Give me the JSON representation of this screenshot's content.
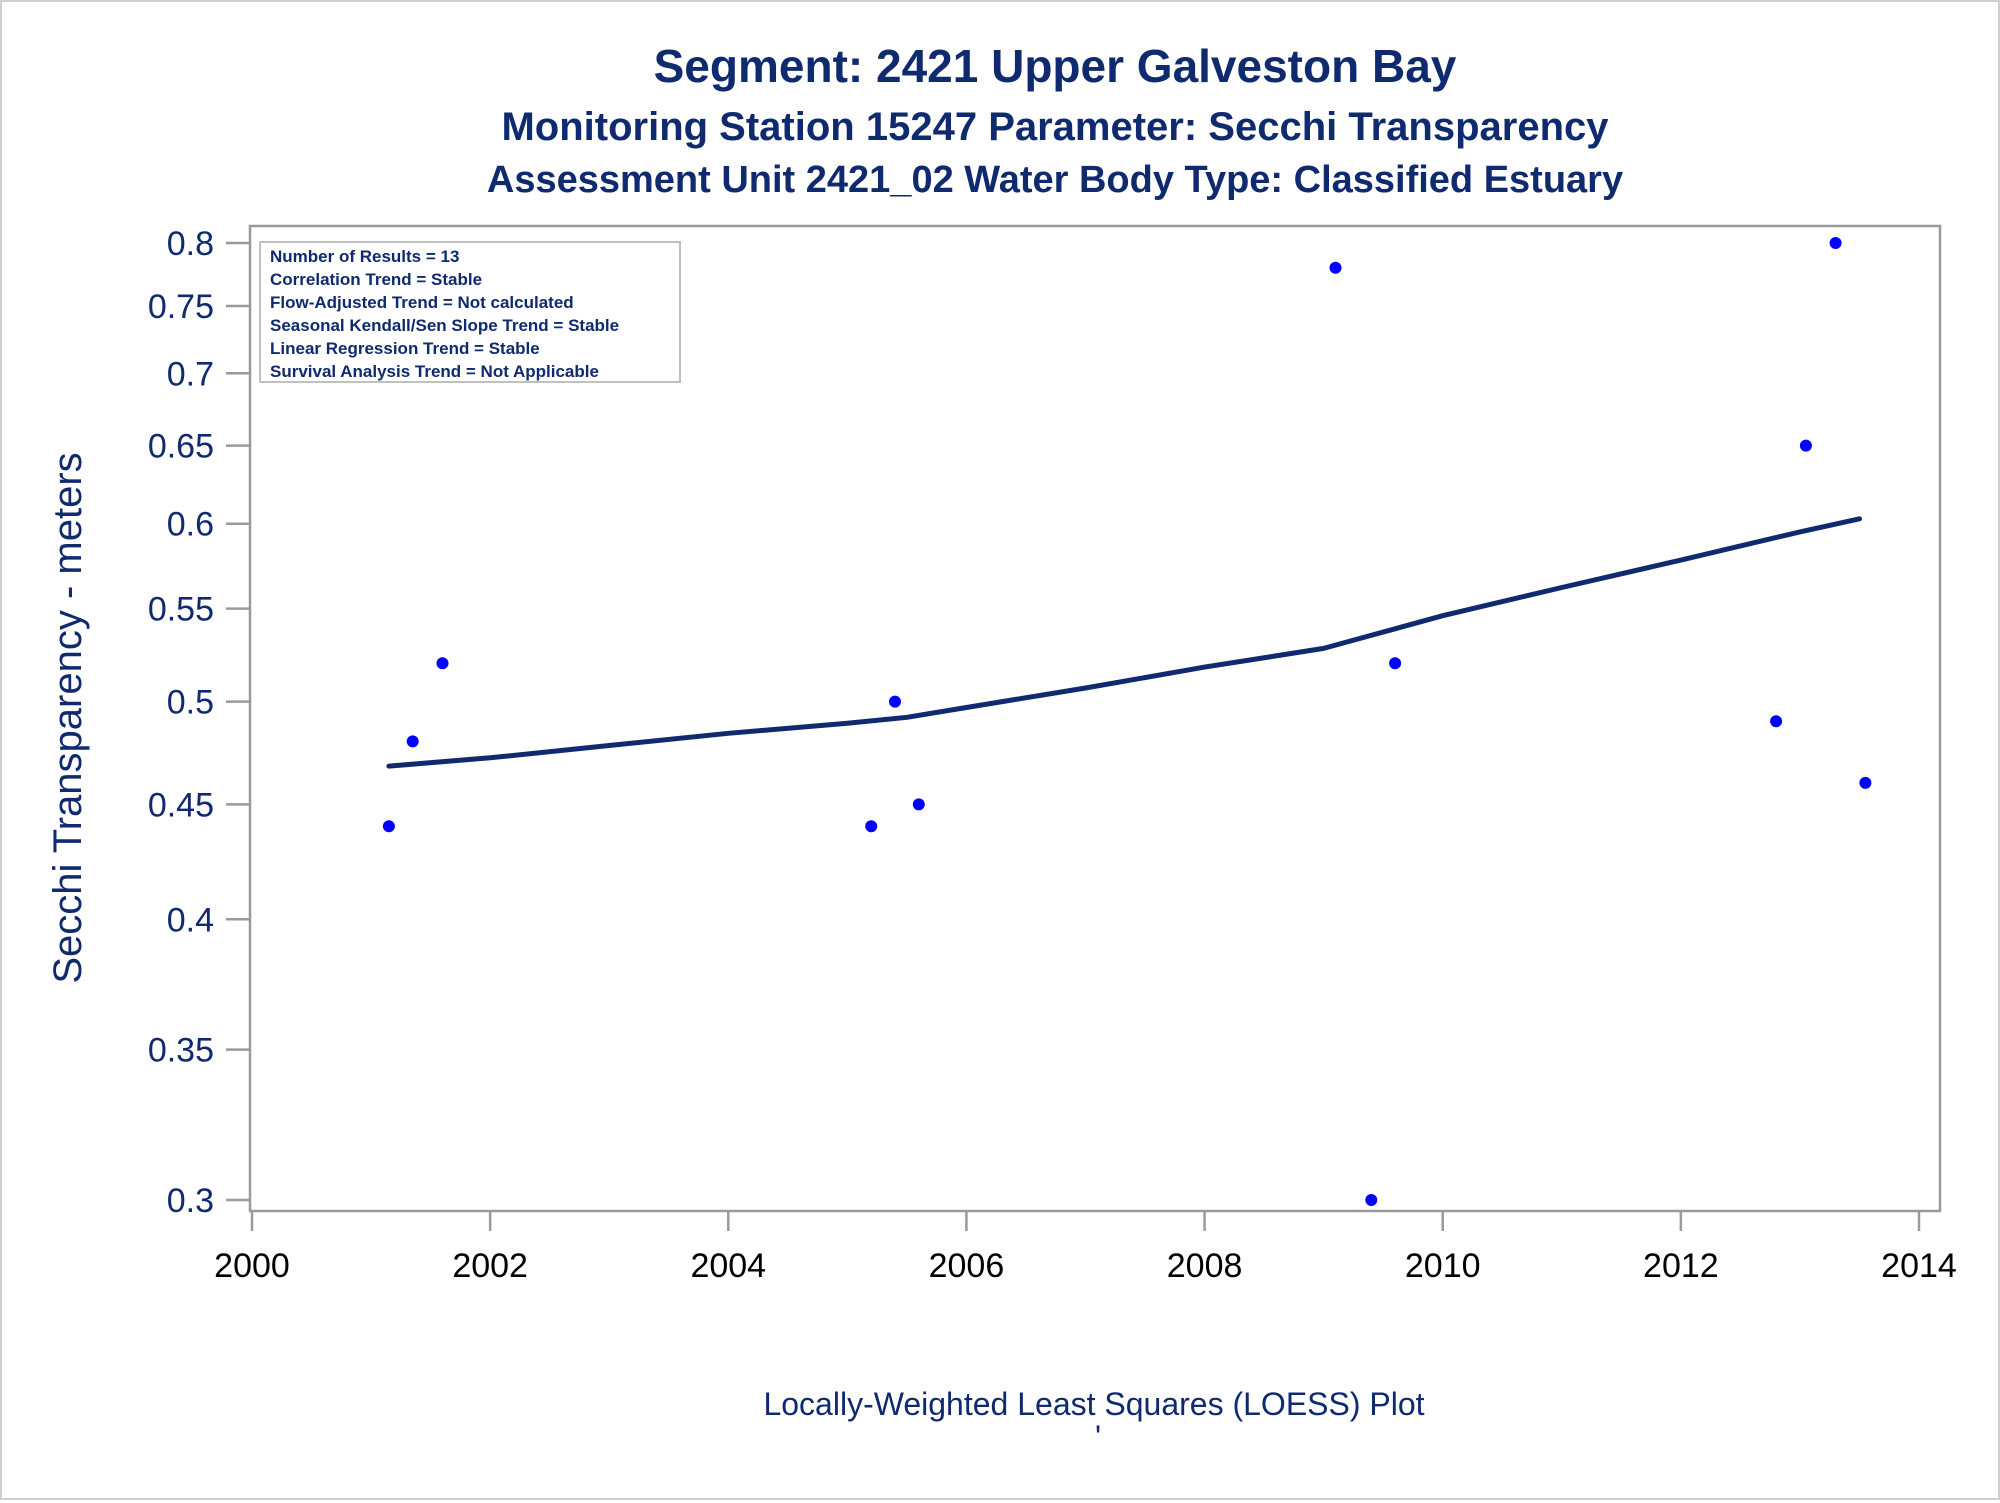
{
  "titles": {
    "line1": "Segment: 2421  Upper Galveston Bay",
    "line2": "Monitoring Station 15247 Parameter: Secchi Transparency",
    "line3": "Assessment Unit 2421_02   Water Body Type: Classified Estuary"
  },
  "stats_box": {
    "lines": [
      "Number of Results = 13",
      "Correlation Trend = Stable",
      "Flow-Adjusted Trend = Not calculated",
      "Seasonal Kendall/Sen Slope Trend = Stable",
      "Linear Regression Trend = Stable",
      "Survival Analysis Trend = Not Applicable"
    ]
  },
  "footnote": "Locally-Weighted Least Squares (LOESS) Plot",
  "footnote_mark": "'",
  "colors": {
    "text": "#0f2a6e",
    "points": "#0000ff",
    "trend_line": "#0f2a6e",
    "axis": "#9a9a9a"
  },
  "chart_data": {
    "type": "scatter",
    "ylabel": "Secchi Transparency - meters",
    "xlabel": "",
    "y_scale": "log",
    "xlim": [
      2000,
      2014
    ],
    "ylim": [
      0.3,
      0.8
    ],
    "x_ticks": [
      2000,
      2002,
      2004,
      2006,
      2008,
      2010,
      2012,
      2014
    ],
    "y_ticks": [
      0.3,
      0.35,
      0.4,
      0.45,
      0.5,
      0.55,
      0.6,
      0.65,
      0.7,
      0.75,
      0.8
    ],
    "legend": "none",
    "grid": false,
    "series": [
      {
        "type": "scatter",
        "x": [
          2001.15,
          2001.35,
          2001.6,
          2005.2,
          2005.4,
          2005.6,
          2009.1,
          2009.4,
          2009.6,
          2012.8,
          2013.05,
          2013.3,
          2013.55
        ],
        "y": [
          0.44,
          0.48,
          0.52,
          0.44,
          0.5,
          0.45,
          0.78,
          0.3,
          0.52,
          0.49,
          0.65,
          0.8,
          0.46
        ]
      },
      {
        "type": "line",
        "x": [
          2001.15,
          2002,
          2003,
          2004,
          2005,
          2005.5,
          2006,
          2007,
          2008,
          2009,
          2010,
          2011,
          2012,
          2013,
          2013.5
        ],
        "y": [
          0.468,
          0.472,
          0.478,
          0.484,
          0.489,
          0.492,
          0.497,
          0.507,
          0.518,
          0.528,
          0.546,
          0.562,
          0.578,
          0.595,
          0.603
        ]
      }
    ]
  }
}
